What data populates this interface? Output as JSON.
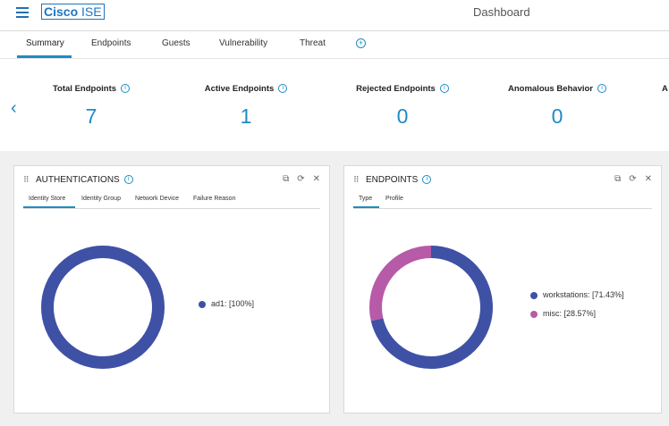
{
  "header": {
    "brand_cisco": "Cisco",
    "brand_ise": "ISE",
    "page_title": "Dashboard"
  },
  "tabs": [
    {
      "label": "Summary",
      "active": true
    },
    {
      "label": "Endpoints"
    },
    {
      "label": "Guests"
    },
    {
      "label": "Vulnerability"
    },
    {
      "label": "Threat"
    }
  ],
  "metrics": [
    {
      "label": "Total Endpoints",
      "value": "7"
    },
    {
      "label": "Active Endpoints",
      "value": "1"
    },
    {
      "label": "Rejected Endpoints",
      "value": "0"
    },
    {
      "label": "Anomalous Behavior",
      "value": "0"
    },
    {
      "label": "A",
      "value": ""
    }
  ],
  "auth_card": {
    "title": "AUTHENTICATIONS",
    "tabs": [
      "Identity Store",
      "Identity Group",
      "Network Device",
      "Failure Reason"
    ],
    "legend": [
      {
        "label": "ad1: [100%]",
        "value": 100,
        "color": "#3f51a5"
      }
    ]
  },
  "endpoints_card": {
    "title": "ENDPOINTS",
    "tabs": [
      "Type",
      "Profile"
    ],
    "legend": [
      {
        "label": "workstations: [71.43%]",
        "value": 71.43,
        "color": "#3f51a5"
      },
      {
        "label": "misc: [28.57%]",
        "value": 28.57,
        "color": "#b75aa8"
      }
    ]
  },
  "icons": {
    "menu": "hamburger-menu-icon",
    "info": "info-icon",
    "export": "export-icon",
    "refresh": "refresh-icon",
    "close": "close-icon"
  }
}
